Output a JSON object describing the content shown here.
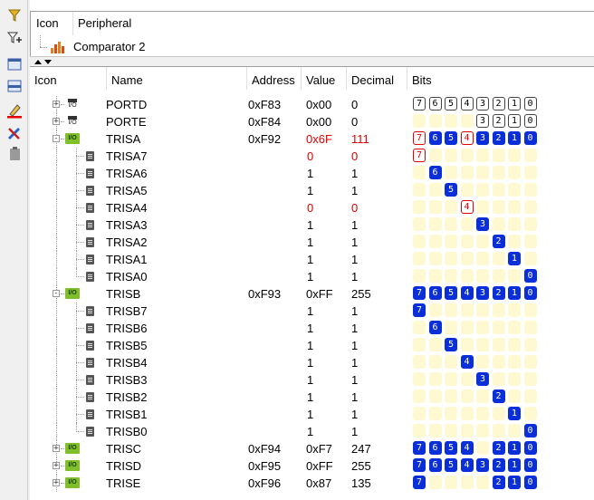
{
  "filter_panel": {
    "columns": [
      "Icon",
      "Peripheral"
    ],
    "items": [
      {
        "label": "Comparator 2",
        "icon": "bar-chart-icon"
      }
    ]
  },
  "columns": {
    "icon": "Icon",
    "name": "Name",
    "address": "Address",
    "value": "Value",
    "decimal": "Decimal",
    "bits": "Bits"
  },
  "rows": [
    {
      "kind": "reg",
      "name": "PORTD",
      "address": "0xF83",
      "value": "0x00",
      "decimal": "0",
      "expander": "+",
      "icon": "chip",
      "changed": false,
      "bits": [
        "off",
        "off",
        "off",
        "off",
        "off",
        "off",
        "off",
        "off"
      ]
    },
    {
      "kind": "reg",
      "name": "PORTE",
      "address": "0xF84",
      "value": "0x00",
      "decimal": "0",
      "expander": "+",
      "icon": "chip",
      "changed": false,
      "bits": [
        "emp",
        "emp",
        "emp",
        "emp",
        "off",
        "off",
        "off",
        "off"
      ]
    },
    {
      "kind": "reg",
      "name": "TRISA",
      "address": "0xF92",
      "value": "0x6F",
      "decimal": "111",
      "expander": "-",
      "icon": "io",
      "changed": true,
      "bits": [
        "chg",
        "on",
        "on",
        "chg",
        "on",
        "on",
        "on",
        "on"
      ]
    },
    {
      "kind": "bit",
      "name": "TRISA7",
      "value": "0",
      "decimal": "0",
      "changed": true,
      "pos": 0,
      "state": "chg"
    },
    {
      "kind": "bit",
      "name": "TRISA6",
      "value": "1",
      "decimal": "1",
      "changed": false,
      "pos": 1,
      "state": "on"
    },
    {
      "kind": "bit",
      "name": "TRISA5",
      "value": "1",
      "decimal": "1",
      "changed": false,
      "pos": 2,
      "state": "on"
    },
    {
      "kind": "bit",
      "name": "TRISA4",
      "value": "0",
      "decimal": "0",
      "changed": true,
      "pos": 3,
      "state": "chg"
    },
    {
      "kind": "bit",
      "name": "TRISA3",
      "value": "1",
      "decimal": "1",
      "changed": false,
      "pos": 4,
      "state": "on"
    },
    {
      "kind": "bit",
      "name": "TRISA2",
      "value": "1",
      "decimal": "1",
      "changed": false,
      "pos": 5,
      "state": "on"
    },
    {
      "kind": "bit",
      "name": "TRISA1",
      "value": "1",
      "decimal": "1",
      "changed": false,
      "pos": 6,
      "state": "on"
    },
    {
      "kind": "bit",
      "name": "TRISA0",
      "value": "1",
      "decimal": "1",
      "changed": false,
      "pos": 7,
      "state": "on"
    },
    {
      "kind": "reg",
      "name": "TRISB",
      "address": "0xF93",
      "value": "0xFF",
      "decimal": "255",
      "expander": "-",
      "icon": "io",
      "changed": false,
      "bits": [
        "on",
        "on",
        "on",
        "on",
        "on",
        "on",
        "on",
        "on"
      ]
    },
    {
      "kind": "bit",
      "name": "TRISB7",
      "value": "1",
      "decimal": "1",
      "changed": false,
      "pos": 0,
      "state": "on"
    },
    {
      "kind": "bit",
      "name": "TRISB6",
      "value": "1",
      "decimal": "1",
      "changed": false,
      "pos": 1,
      "state": "on"
    },
    {
      "kind": "bit",
      "name": "TRISB5",
      "value": "1",
      "decimal": "1",
      "changed": false,
      "pos": 2,
      "state": "on"
    },
    {
      "kind": "bit",
      "name": "TRISB4",
      "value": "1",
      "decimal": "1",
      "changed": false,
      "pos": 3,
      "state": "on"
    },
    {
      "kind": "bit",
      "name": "TRISB3",
      "value": "1",
      "decimal": "1",
      "changed": false,
      "pos": 4,
      "state": "on"
    },
    {
      "kind": "bit",
      "name": "TRISB2",
      "value": "1",
      "decimal": "1",
      "changed": false,
      "pos": 5,
      "state": "on"
    },
    {
      "kind": "bit",
      "name": "TRISB1",
      "value": "1",
      "decimal": "1",
      "changed": false,
      "pos": 6,
      "state": "on"
    },
    {
      "kind": "bit",
      "name": "TRISB0",
      "value": "1",
      "decimal": "1",
      "changed": false,
      "pos": 7,
      "state": "on"
    },
    {
      "kind": "reg",
      "name": "TRISC",
      "address": "0xF94",
      "value": "0xF7",
      "decimal": "247",
      "expander": "+",
      "icon": "io",
      "changed": false,
      "bits": [
        "on",
        "on",
        "on",
        "on",
        "emp",
        "on",
        "on",
        "on"
      ]
    },
    {
      "kind": "reg",
      "name": "TRISD",
      "address": "0xF95",
      "value": "0xFF",
      "decimal": "255",
      "expander": "+",
      "icon": "io",
      "changed": false,
      "bits": [
        "on",
        "on",
        "on",
        "on",
        "on",
        "on",
        "on",
        "on"
      ]
    },
    {
      "kind": "reg",
      "name": "TRISE",
      "address": "0xF96",
      "value": "0x87",
      "decimal": "135",
      "expander": "+",
      "icon": "io",
      "changed": false,
      "bits": [
        "on",
        "emp",
        "emp",
        "emp",
        "emp",
        "on",
        "on",
        "on"
      ]
    }
  ],
  "bit_labels": [
    "7",
    "6",
    "5",
    "4",
    "3",
    "2",
    "1",
    "0"
  ],
  "io_label": "I/O",
  "colors": {
    "bit_on": "#0a2ed8",
    "changed": "#e00000",
    "bit_empty": "#fff9d2",
    "io_icon": "#7fc02a"
  }
}
